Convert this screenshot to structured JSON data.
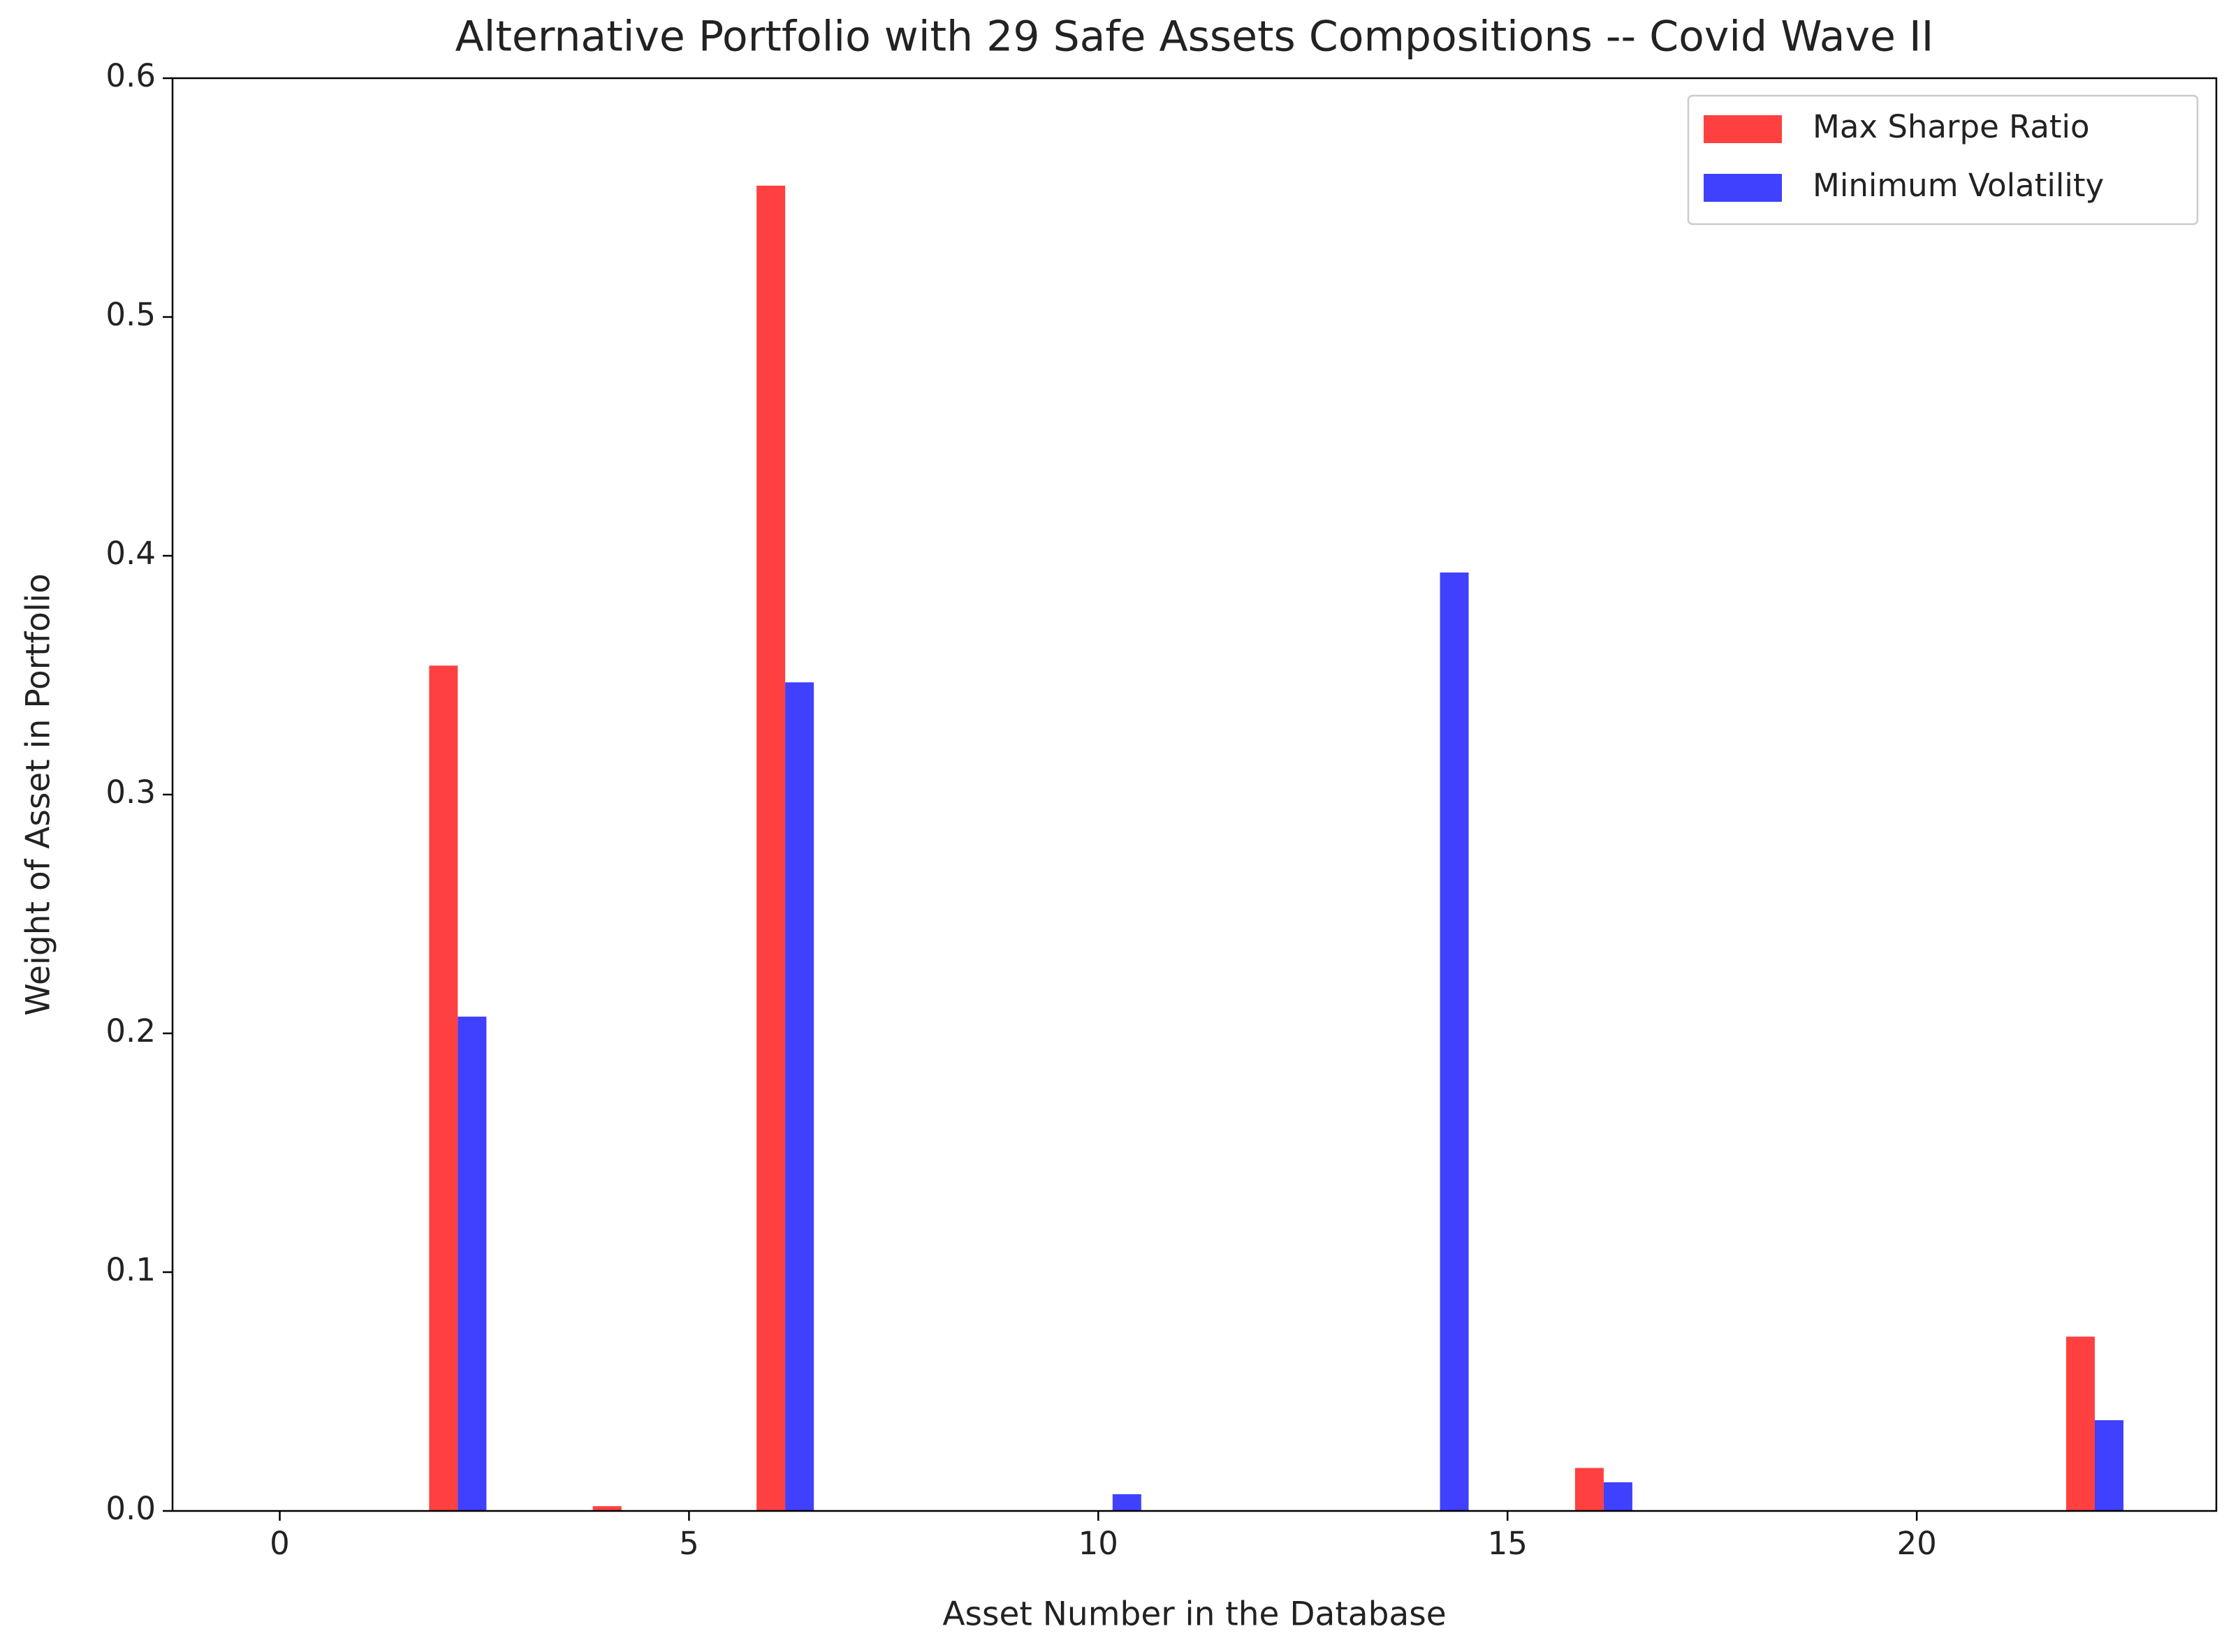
{
  "chart_data": {
    "type": "bar",
    "title": "Alternative Portfolio with 29 Safe Assets Compositions -- Covid Wave II",
    "x_label": "Asset Number in the Database",
    "y_label": "Weight of Asset in Portfolio",
    "x": [
      0,
      1,
      2,
      3,
      4,
      5,
      6,
      7,
      8,
      9,
      10,
      11,
      12,
      13,
      14,
      15,
      16,
      17,
      18,
      19,
      20,
      21,
      22
    ],
    "series": [
      {
        "name": "Max Sharpe Ratio",
        "color": "#ff4040",
        "values": [
          0,
          0,
          0.354,
          0,
          0.002,
          0,
          0.555,
          0,
          0,
          0,
          0,
          0,
          0,
          0,
          0,
          0,
          0.018,
          0,
          0,
          0,
          0,
          0,
          0.073
        ]
      },
      {
        "name": "Minimum Volatility",
        "color": "#4040ff",
        "values": [
          0,
          0,
          0.207,
          0,
          0,
          0,
          0.347,
          0,
          0,
          0,
          0.007,
          0,
          0,
          0,
          0.393,
          0,
          0.012,
          0,
          0,
          0,
          0,
          0,
          0.038
        ]
      }
    ],
    "xlim": [
      -1.31,
      23.66
    ],
    "xticks": [
      0,
      5,
      10,
      15,
      20
    ],
    "ylim": [
      0,
      0.6
    ],
    "yticks": [
      {
        "value": 0,
        "label": "0.0"
      },
      0.1,
      0.2,
      0.3,
      0.4,
      0.5,
      0.6
    ],
    "bar_width": 0.35,
    "grid": false,
    "legend": "upper right"
  }
}
